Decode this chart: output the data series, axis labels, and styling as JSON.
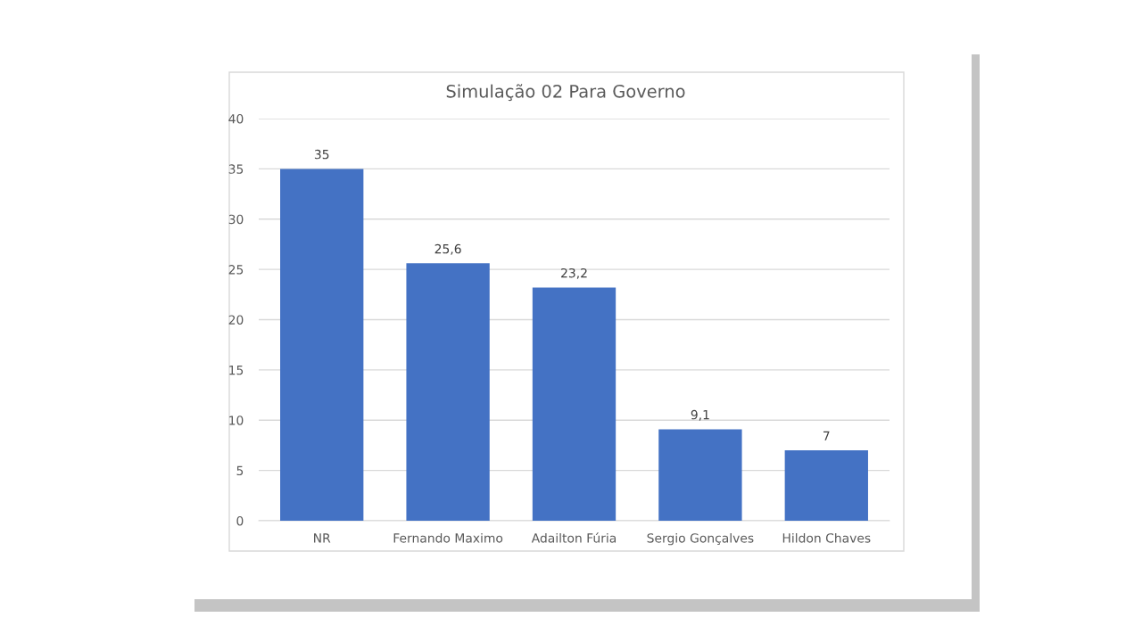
{
  "chart_data": {
    "type": "bar",
    "title": "Simulação 02 Para Governo",
    "categories": [
      "NR",
      "Fernando Maximo",
      "Adailton Fúria",
      "Sergio Gonçalves",
      "Hildon Chaves"
    ],
    "values": [
      35,
      25.6,
      23.2,
      9.1,
      7
    ],
    "value_labels": [
      "35",
      "25,6",
      "23,2",
      "9,1",
      "7"
    ],
    "color": "#4472c4",
    "ylim": [
      0,
      40
    ],
    "yticks": [
      0,
      5,
      10,
      15,
      20,
      25,
      30,
      35,
      40
    ],
    "grid": "y"
  }
}
